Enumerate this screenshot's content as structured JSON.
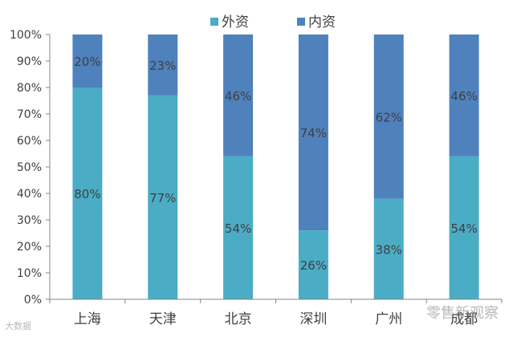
{
  "chart_data": {
    "type": "bar",
    "stacked": true,
    "categories": [
      "上海",
      "天津",
      "北京",
      "深圳",
      "广州",
      "成都"
    ],
    "series": [
      {
        "name": "外资",
        "color": "#4bacc6",
        "values": [
          80,
          77,
          54,
          26,
          38,
          54
        ]
      },
      {
        "name": "内资",
        "color": "#4f81bd",
        "values": [
          20,
          23,
          46,
          74,
          62,
          46
        ]
      }
    ],
    "ylim": [
      0,
      100
    ],
    "yticks": [
      "0%",
      "10%",
      "20%",
      "30%",
      "40%",
      "50%",
      "60%",
      "70%",
      "80%",
      "90%",
      "100%"
    ],
    "legend_position": "top-center",
    "grid": false,
    "data_label_suffix": "%"
  },
  "watermarks": {
    "right": "零售新观察",
    "left": "大数据"
  }
}
